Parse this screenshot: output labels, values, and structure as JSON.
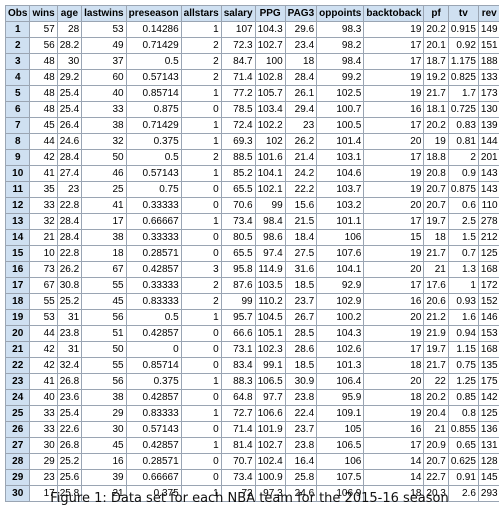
{
  "columns": [
    "Obs",
    "wins",
    "age",
    "lastwins",
    "preseason",
    "allstars",
    "salary",
    "PPG",
    "PAG3",
    "oppoints",
    "backtoback",
    "pf",
    "tv",
    "rev"
  ],
  "rows": [
    [
      "1",
      "57",
      "28",
      "53",
      "0.14286",
      "1",
      "107",
      "104.3",
      "29.6",
      "98.3",
      "19",
      "20.2",
      "0.915",
      "149"
    ],
    [
      "2",
      "56",
      "28.2",
      "49",
      "0.71429",
      "2",
      "72.3",
      "102.7",
      "23.4",
      "98.2",
      "17",
      "20.1",
      "0.92",
      "151"
    ],
    [
      "3",
      "48",
      "30",
      "37",
      "0.5",
      "2",
      "84.7",
      "100",
      "18",
      "98.4",
      "17",
      "18.7",
      "1.175",
      "188"
    ],
    [
      "4",
      "48",
      "29.2",
      "60",
      "0.57143",
      "2",
      "71.4",
      "102.8",
      "28.4",
      "99.2",
      "19",
      "19.2",
      "0.825",
      "133"
    ],
    [
      "5",
      "48",
      "25.4",
      "40",
      "0.85714",
      "1",
      "77.2",
      "105.7",
      "26.1",
      "102.5",
      "19",
      "21.7",
      "1.7",
      "173"
    ],
    [
      "6",
      "48",
      "25.4",
      "33",
      "0.875",
      "0",
      "78.5",
      "103.4",
      "29.4",
      "100.7",
      "16",
      "18.1",
      "0.725",
      "130"
    ],
    [
      "7",
      "45",
      "26.4",
      "38",
      "0.71429",
      "1",
      "72.4",
      "102.2",
      "23",
      "100.5",
      "17",
      "20.2",
      "0.83",
      "139"
    ],
    [
      "8",
      "44",
      "24.6",
      "32",
      "0.375",
      "1",
      "69.3",
      "102",
      "26.2",
      "101.4",
      "20",
      "19",
      "0.81",
      "144"
    ],
    [
      "9",
      "42",
      "28.4",
      "50",
      "0.5",
      "2",
      "88.5",
      "101.6",
      "21.4",
      "103.1",
      "17",
      "18.8",
      "2",
      "201"
    ],
    [
      "10",
      "41",
      "27.4",
      "46",
      "0.57143",
      "1",
      "85.2",
      "104.1",
      "24.2",
      "104.6",
      "19",
      "20.8",
      "0.9",
      "143"
    ],
    [
      "11",
      "35",
      "23",
      "25",
      "0.75",
      "0",
      "65.5",
      "102.1",
      "22.2",
      "103.7",
      "19",
      "20.7",
      "0.875",
      "143"
    ],
    [
      "12",
      "33",
      "22.8",
      "41",
      "0.33333",
      "0",
      "70.6",
      "99",
      "15.6",
      "103.2",
      "20",
      "20.7",
      "0.6",
      "110"
    ],
    [
      "13",
      "32",
      "28.4",
      "17",
      "0.66667",
      "1",
      "73.4",
      "98.4",
      "21.5",
      "101.1",
      "17",
      "19.7",
      "2.5",
      "278"
    ],
    [
      "14",
      "21",
      "28.4",
      "38",
      "0.33333",
      "0",
      "80.5",
      "98.6",
      "18.4",
      "106",
      "15",
      "18",
      "1.5",
      "212"
    ],
    [
      "15",
      "10",
      "22.8",
      "18",
      "0.28571",
      "0",
      "65.5",
      "97.4",
      "27.5",
      "107.6",
      "19",
      "21.7",
      "0.7",
      "125"
    ],
    [
      "16",
      "73",
      "26.2",
      "67",
      "0.42857",
      "3",
      "95.8",
      "114.9",
      "31.6",
      "104.1",
      "20",
      "21",
      "1.3",
      "168"
    ],
    [
      "17",
      "67",
      "30.8",
      "55",
      "0.33333",
      "2",
      "87.6",
      "103.5",
      "18.5",
      "92.9",
      "17",
      "17.6",
      "1",
      "172"
    ],
    [
      "18",
      "55",
      "25.2",
      "45",
      "0.83333",
      "2",
      "99",
      "110.2",
      "23.7",
      "102.9",
      "16",
      "20.6",
      "0.93",
      "152"
    ],
    [
      "19",
      "53",
      "31",
      "56",
      "0.5",
      "1",
      "95.7",
      "104.5",
      "26.7",
      "100.2",
      "20",
      "21.2",
      "1.6",
      "146"
    ],
    [
      "20",
      "44",
      "23.8",
      "51",
      "0.42857",
      "0",
      "66.6",
      "105.1",
      "28.5",
      "104.3",
      "19",
      "21.9",
      "0.94",
      "153"
    ],
    [
      "21",
      "42",
      "31",
      "50",
      "0",
      "0",
      "73.1",
      "102.3",
      "28.6",
      "102.6",
      "17",
      "19.7",
      "1.15",
      "168"
    ],
    [
      "22",
      "42",
      "32.4",
      "55",
      "0.85714",
      "0",
      "83.4",
      "99.1",
      "18.5",
      "101.3",
      "18",
      "21.7",
      "0.75",
      "135"
    ],
    [
      "23",
      "41",
      "26.8",
      "56",
      "0.375",
      "1",
      "88.3",
      "106.5",
      "30.9",
      "106.4",
      "20",
      "22",
      "1.25",
      "175"
    ],
    [
      "24",
      "40",
      "23.6",
      "38",
      "0.42857",
      "0",
      "64.8",
      "97.7",
      "23.8",
      "95.9",
      "18",
      "20.2",
      "0.85",
      "142"
    ],
    [
      "25",
      "33",
      "25.4",
      "29",
      "0.83333",
      "1",
      "72.7",
      "106.6",
      "22.4",
      "109.1",
      "19",
      "20.4",
      "0.8",
      "125"
    ],
    [
      "26",
      "33",
      "22.6",
      "30",
      "0.57143",
      "0",
      "71.4",
      "101.9",
      "23.7",
      "105",
      "16",
      "21",
      "0.855",
      "136"
    ],
    [
      "27",
      "30",
      "26.8",
      "45",
      "0.42857",
      "1",
      "81.4",
      "102.7",
      "23.8",
      "106.5",
      "17",
      "20.9",
      "0.65",
      "131"
    ],
    [
      "28",
      "29",
      "25.2",
      "16",
      "0.28571",
      "0",
      "70.7",
      "102.4",
      "16.4",
      "106",
      "14",
      "20.7",
      "0.625",
      "128"
    ],
    [
      "29",
      "23",
      "25.6",
      "39",
      "0.66667",
      "0",
      "73.4",
      "100.9",
      "25.8",
      "107.5",
      "14",
      "22.7",
      "0.91",
      "145"
    ],
    [
      "30",
      "17",
      "25.8",
      "21",
      "0.375",
      "1",
      "72",
      "97.3",
      "24.6",
      "106.9",
      "18",
      "20.3",
      "2.6",
      "293"
    ]
  ],
  "caption": "Figure 1: Data set for each NBA team for the 2015-16 season"
}
